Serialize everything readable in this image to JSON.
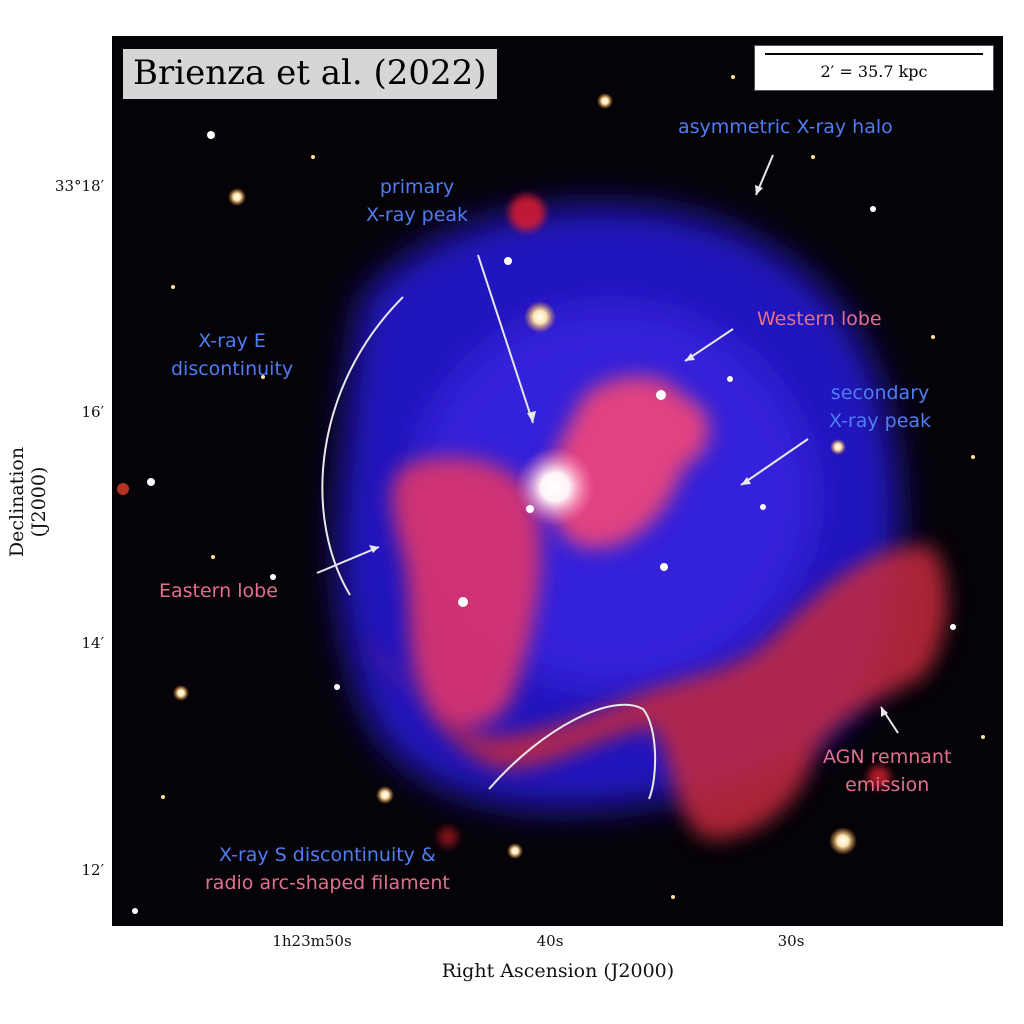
{
  "credit": "Brienza et al. (2022)",
  "scale_bar": "2′ = 35.7 kpc",
  "annotations": {
    "halo": "asymmetric X-ray halo",
    "primary_1": "primary",
    "primary_2": "X-ray peak",
    "edisc_1": "X-ray E",
    "edisc_2": "discontinuity",
    "western": "Western lobe",
    "secondary_1": "secondary",
    "secondary_2": "X-ray peak",
    "eastern": "Eastern lobe",
    "agn_1": "AGN remnant",
    "agn_2": "emission",
    "sdisc_1": "X-ray S discontinuity &",
    "sdisc_2": "radio arc-shaped filament"
  },
  "colors": {
    "xray_label": "#4f7df2",
    "radio_label": "#e2708c",
    "xray_emission": "#2a1cd6",
    "radio_emission": "#e0305f"
  },
  "axes": {
    "xlabel": "Right Ascension (J2000)",
    "ylabel": "Declination (J2000)",
    "y_ticks": [
      "33°18′",
      "16′",
      "14′",
      "12′"
    ],
    "x_ticks": [
      "1h23m50s",
      "40s",
      "30s"
    ]
  }
}
